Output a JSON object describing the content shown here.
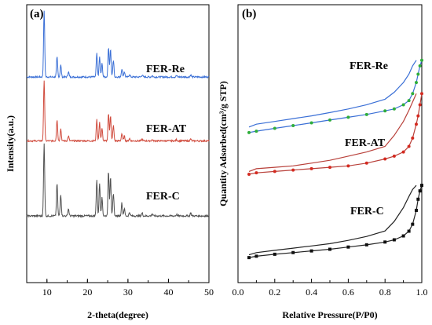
{
  "chart_data": [
    {
      "type": "line",
      "panel_label": "(a)",
      "xlabel": "2-theta(degree)",
      "ylabel": "Intensity(a.u.)",
      "xlim": [
        5,
        50
      ],
      "xticks": [
        10,
        20,
        30,
        40,
        50
      ],
      "yticks_shown": false,
      "series": [
        {
          "name": "FER-Re",
          "color": "#3a6fd6",
          "baseline": 0.74,
          "scale": 0.24,
          "peaks": [
            [
              9.3,
              1.0
            ],
            [
              12.5,
              0.3
            ],
            [
              13.4,
              0.18
            ],
            [
              15.3,
              0.08
            ],
            [
              22.3,
              0.35
            ],
            [
              23.0,
              0.3
            ],
            [
              23.6,
              0.2
            ],
            [
              25.2,
              0.45
            ],
            [
              25.7,
              0.42
            ],
            [
              26.4,
              0.25
            ],
            [
              28.5,
              0.12
            ],
            [
              29.1,
              0.08
            ],
            [
              30.4,
              0.04
            ],
            [
              33.5,
              0.03
            ],
            [
              36.0,
              0.02
            ],
            [
              42.0,
              0.02
            ],
            [
              45.5,
              0.03
            ]
          ]
        },
        {
          "name": "FER-AT",
          "color": "#d04a3c",
          "baseline": 0.51,
          "scale": 0.22,
          "peaks": [
            [
              9.3,
              1.0
            ],
            [
              12.5,
              0.35
            ],
            [
              13.4,
              0.2
            ],
            [
              15.3,
              0.08
            ],
            [
              22.3,
              0.35
            ],
            [
              23.0,
              0.3
            ],
            [
              23.6,
              0.2
            ],
            [
              25.2,
              0.45
            ],
            [
              25.7,
              0.42
            ],
            [
              26.4,
              0.25
            ],
            [
              28.5,
              0.12
            ],
            [
              29.1,
              0.08
            ],
            [
              30.4,
              0.04
            ],
            [
              33.5,
              0.03
            ],
            [
              36.0,
              0.02
            ],
            [
              42.0,
              0.02
            ],
            [
              45.5,
              0.03
            ]
          ]
        },
        {
          "name": "FER-C",
          "color": "#505050",
          "baseline": 0.24,
          "scale": 0.26,
          "peaks": [
            [
              9.3,
              1.0
            ],
            [
              12.5,
              0.45
            ],
            [
              13.4,
              0.3
            ],
            [
              15.3,
              0.1
            ],
            [
              22.3,
              0.5
            ],
            [
              23.0,
              0.45
            ],
            [
              23.6,
              0.25
            ],
            [
              25.2,
              0.62
            ],
            [
              25.7,
              0.55
            ],
            [
              26.4,
              0.3
            ],
            [
              28.5,
              0.18
            ],
            [
              29.1,
              0.1
            ],
            [
              30.4,
              0.05
            ],
            [
              33.5,
              0.04
            ],
            [
              36.0,
              0.03
            ],
            [
              42.0,
              0.02
            ],
            [
              45.5,
              0.04
            ]
          ]
        }
      ]
    },
    {
      "type": "line",
      "panel_label": "(b)",
      "xlabel": "Relative Pressure(P/P0)",
      "ylabel": "Quantity Adsorbed(cm³/g STP)",
      "xlim": [
        0.0,
        1.0
      ],
      "xticks": [
        0.0,
        0.2,
        0.4,
        0.6,
        0.8,
        1.0
      ],
      "xtick_labels": [
        "0.0",
        "0.2",
        "0.4",
        "0.6",
        "0.8",
        "1.0"
      ],
      "yticks_shown": false,
      "series": [
        {
          "name": "FER-Re",
          "color": "#3a6fd6",
          "marker_color": "#2fae3a",
          "x": [
            0.06,
            0.1,
            0.2,
            0.3,
            0.4,
            0.5,
            0.6,
            0.7,
            0.8,
            0.85,
            0.9,
            0.93,
            0.95,
            0.97,
            0.98,
            0.99,
            1.0
          ],
          "adsorption": [
            0.54,
            0.545,
            0.555,
            0.565,
            0.575,
            0.585,
            0.595,
            0.605,
            0.618,
            0.625,
            0.64,
            0.655,
            0.68,
            0.72,
            0.75,
            0.78,
            0.8
          ],
          "desorption": [
            0.56,
            0.57,
            0.58,
            0.59,
            0.6,
            0.612,
            0.625,
            0.64,
            0.66,
            0.685,
            0.72,
            0.75,
            0.78,
            0.8
          ]
        },
        {
          "name": "FER-AT",
          "color": "#b8403a",
          "marker_color": "#d42a20",
          "x": [
            0.06,
            0.1,
            0.2,
            0.3,
            0.4,
            0.5,
            0.6,
            0.7,
            0.8,
            0.85,
            0.9,
            0.93,
            0.95,
            0.97,
            0.98,
            0.99,
            1.0
          ],
          "adsorption": [
            0.39,
            0.395,
            0.4,
            0.405,
            0.41,
            0.415,
            0.42,
            0.43,
            0.445,
            0.455,
            0.47,
            0.49,
            0.52,
            0.57,
            0.6,
            0.64,
            0.68
          ],
          "desorption": [
            0.4,
            0.41,
            0.415,
            0.42,
            0.43,
            0.44,
            0.455,
            0.47,
            0.49,
            0.53,
            0.58,
            0.62,
            0.65,
            0.68
          ]
        },
        {
          "name": "FER-C",
          "color": "#222222",
          "marker_color": "#111111",
          "x": [
            0.06,
            0.1,
            0.2,
            0.3,
            0.4,
            0.5,
            0.6,
            0.7,
            0.8,
            0.85,
            0.9,
            0.93,
            0.95,
            0.97,
            0.98,
            0.99,
            1.0
          ],
          "adsorption": [
            0.09,
            0.095,
            0.102,
            0.108,
            0.114,
            0.12,
            0.128,
            0.136,
            0.146,
            0.154,
            0.168,
            0.185,
            0.21,
            0.26,
            0.3,
            0.33,
            0.35
          ],
          "desorption": [
            0.1,
            0.108,
            0.116,
            0.124,
            0.132,
            0.14,
            0.152,
            0.166,
            0.186,
            0.22,
            0.27,
            0.31,
            0.335,
            0.35
          ]
        }
      ]
    }
  ]
}
